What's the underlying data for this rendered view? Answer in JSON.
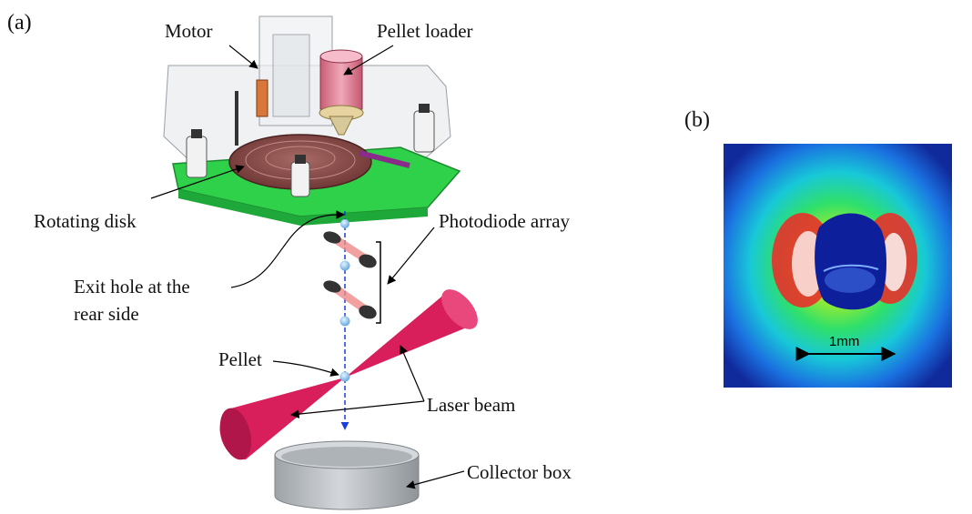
{
  "panel_a": {
    "tag": "(a)",
    "labels": {
      "motor": "Motor",
      "pellet_loader": "Pellet loader",
      "rotating_disk": "Rotating disk",
      "photodiode_array": "Photodiode array",
      "exit_hole_line1": "Exit hole at the",
      "exit_hole_line2": "rear side",
      "pellet": "Pellet",
      "laser_beam": "Laser beam",
      "collector_box": "Collector box"
    }
  },
  "panel_b": {
    "tag": "(b)",
    "scale_bar": "1mm"
  },
  "colors": {
    "base_plate": "#2fd04a",
    "disk": "#8a4a48",
    "pellet_loader": "#e8889a",
    "laser": "#d81f5c",
    "collector": "#bcc1c6",
    "pellet": "#8ec6f0",
    "trajectory": "#1a3fd6"
  }
}
